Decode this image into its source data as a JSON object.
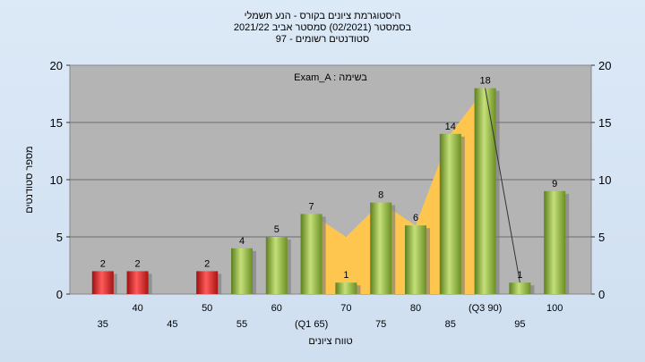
{
  "chart_data": {
    "type": "bar",
    "title_lines": [
      "היסטוגרמת ציונים בקורס - הנע תשמלי",
      "בסמסטר  (02/2021)  סמסטר אביב 2021/22",
      "סטודנטים רשומים - 97"
    ],
    "annotation": "Exam_A : בשימה",
    "xlabel": "טווח ציונים",
    "ylabel": "מספר סטודנטים",
    "ylim": [
      0,
      20
    ],
    "yticks": [
      0,
      5,
      10,
      15,
      20
    ],
    "categories": [
      "35",
      "40",
      "45",
      "50",
      "55",
      "60",
      "(Q1 65)",
      "70",
      "75",
      "80",
      "85",
      "(Q3 90)",
      "95",
      "100"
    ],
    "values": [
      2,
      2,
      0,
      2,
      4,
      5,
      7,
      1,
      8,
      6,
      14,
      18,
      1,
      9
    ],
    "data_labels": [
      "2",
      "2",
      "",
      "2",
      "4",
      "5",
      "7",
      "1",
      "8",
      "6",
      "14",
      "18",
      "1",
      "9"
    ],
    "bar_colors": [
      "#d42a2a",
      "#d42a2a",
      "",
      "#d42a2a",
      "#8cb13c",
      "#8cb13c",
      "#8cb13c",
      "#8cb13c",
      "#8cb13c",
      "#8cb13c",
      "#8cb13c",
      "#8cb13c",
      "#8cb13c",
      "#8cb13c"
    ],
    "iqr_band": {
      "from_category": "(Q1 65)",
      "to_category": "(Q3 90)",
      "color": "#ffc64f"
    },
    "median_line_from": "(Q3 90)",
    "median_line_to": "95",
    "grid": true,
    "plot_background": "#b4b4b4"
  }
}
